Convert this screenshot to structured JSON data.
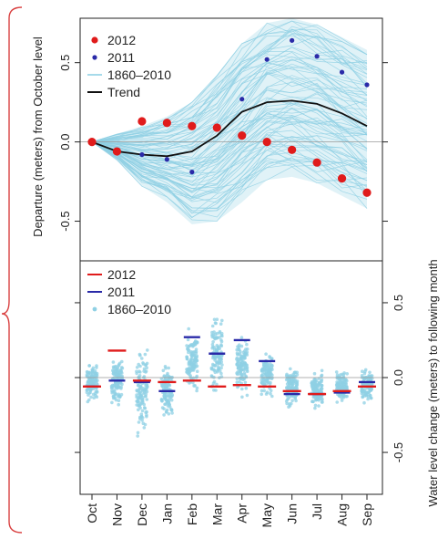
{
  "colors": {
    "red": "#e01b1b",
    "blue": "#2a2aa8",
    "light_blue": "#8fd0e4",
    "trend": "#111111",
    "brace": "#d94040",
    "zero_line": "#999999"
  },
  "months": [
    "Oct",
    "Nov",
    "Dec",
    "Jan",
    "Feb",
    "Mar",
    "Apr",
    "May",
    "Jun",
    "Jul",
    "Aug",
    "Sep"
  ],
  "chart_data": [
    {
      "type": "scatter",
      "title": "",
      "ylabel": "Departure (meters) from October level",
      "yticks": [
        "0.5",
        "0.0",
        "-0.5"
      ],
      "ytick_values": [
        0.5,
        0.0,
        -0.5
      ],
      "ylim": [
        -0.75,
        0.78
      ],
      "legend": {
        "placement": "top-left",
        "entries": [
          "2012",
          "2011",
          "1860–2010",
          "Trend"
        ]
      },
      "series": [
        {
          "name": "2012",
          "style": "point",
          "values": [
            0.0,
            -0.06,
            0.13,
            0.12,
            0.1,
            0.09,
            0.04,
            0.0,
            -0.05,
            -0.13,
            -0.23,
            -0.32
          ]
        },
        {
          "name": "2011",
          "style": "point",
          "values": [
            0.0,
            -0.07,
            -0.08,
            -0.11,
            -0.19,
            0.1,
            0.27,
            0.52,
            0.64,
            0.54,
            0.44,
            0.36
          ]
        },
        {
          "name": "Trend",
          "style": "line",
          "values": [
            0.0,
            -0.06,
            -0.08,
            -0.09,
            -0.06,
            0.04,
            0.19,
            0.25,
            0.26,
            0.24,
            0.18,
            0.1
          ]
        },
        {
          "name": "1860–2010",
          "style": "band",
          "upper": [
            0.0,
            0.05,
            0.1,
            0.16,
            0.25,
            0.42,
            0.62,
            0.75,
            0.78,
            0.74,
            0.66,
            0.58
          ],
          "lower": [
            0.0,
            -0.12,
            -0.28,
            -0.38,
            -0.52,
            -0.5,
            -0.38,
            -0.24,
            -0.22,
            -0.26,
            -0.34,
            -0.42
          ]
        }
      ]
    },
    {
      "type": "scatter",
      "title": "",
      "ylabel": "Water level change (meters) to following month",
      "yticks": [
        "0.5",
        "0.0",
        "-0.5"
      ],
      "ytick_values": [
        0.5,
        0.0,
        -0.5
      ],
      "ylim": [
        -0.78,
        0.78
      ],
      "xticks": [
        "Oct",
        "Nov",
        "Dec",
        "Jan",
        "Feb",
        "Mar",
        "Apr",
        "May",
        "Jun",
        "Jul",
        "Aug",
        "Sep"
      ],
      "legend": {
        "placement": "top-left",
        "entries": [
          "2012",
          "2011",
          "1860–2010"
        ]
      },
      "series": [
        {
          "name": "2012",
          "style": "dash",
          "values": [
            -0.06,
            0.18,
            -0.02,
            -0.03,
            -0.02,
            -0.06,
            -0.05,
            -0.06,
            -0.09,
            -0.11,
            -0.09,
            -0.06
          ]
        },
        {
          "name": "2011",
          "style": "dash",
          "values": [
            -0.06,
            -0.02,
            -0.03,
            -0.09,
            0.27,
            0.16,
            0.25,
            0.11,
            -0.11,
            -0.11,
            -0.1,
            -0.03
          ]
        },
        {
          "name": "1860–2010",
          "style": "strip",
          "upper": [
            0.12,
            0.16,
            0.26,
            0.14,
            0.34,
            0.49,
            0.3,
            0.2,
            0.1,
            0.05,
            0.06,
            0.1
          ],
          "lower": [
            -0.18,
            -0.2,
            -0.42,
            -0.3,
            -0.14,
            -0.14,
            -0.14,
            -0.16,
            -0.22,
            -0.22,
            -0.18,
            -0.2
          ]
        }
      ]
    }
  ]
}
